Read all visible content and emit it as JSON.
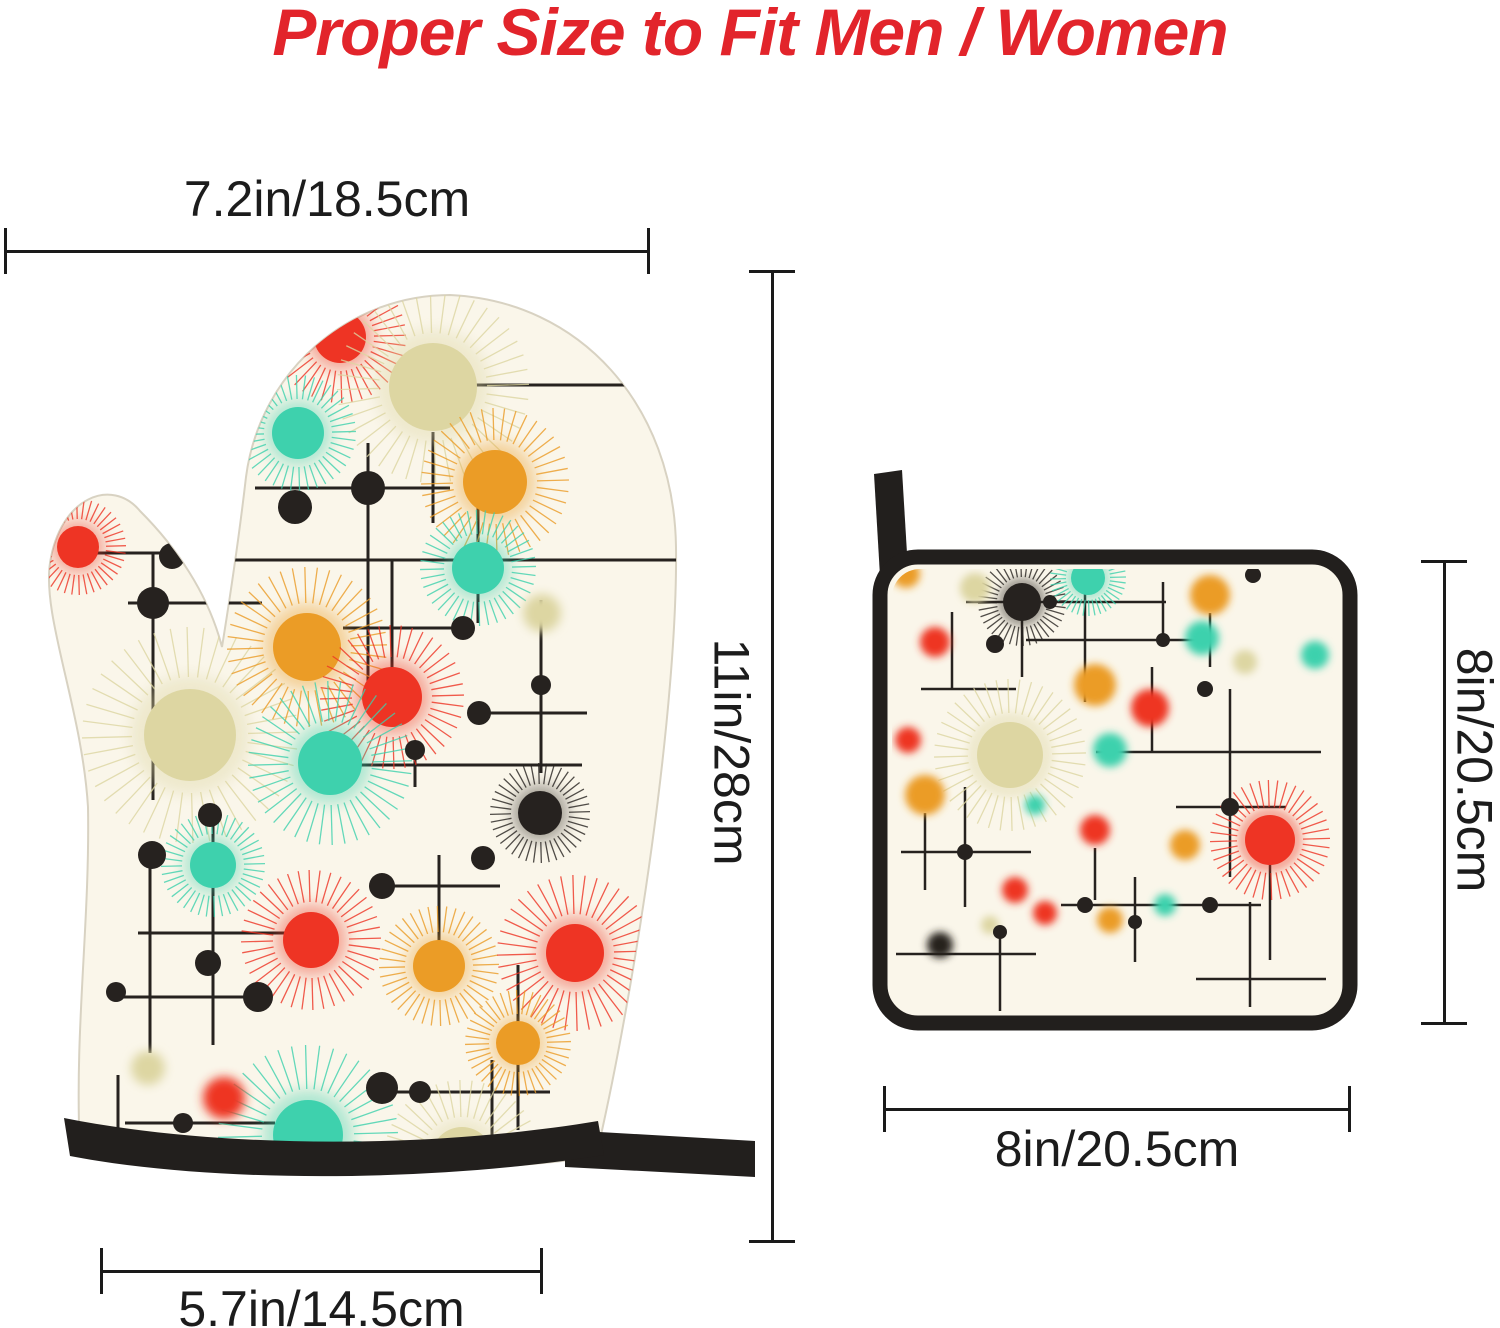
{
  "title": {
    "text": "Proper Size to Fit Men / Women",
    "color": "#e2242b"
  },
  "products": {
    "oven_mitt": {
      "width_label": "7.2in/18.5cm",
      "height_label": "11in/28cm",
      "cuff_width_label": "5.7in/14.5cm"
    },
    "pot_holder": {
      "height_label": "8in/20.5cm",
      "width_label": "8in/20.5cm"
    }
  },
  "palette": {
    "background": "#ffffff",
    "fabric": "#faf6ea",
    "fabric_edge": "#d8d2c2",
    "red": "#ee3424",
    "teal": "#3ed1ad",
    "orange": "#eb9c26",
    "olive": "#ddd6a2",
    "black": "#26221f",
    "binding_black": "#221f1d",
    "dimension_line": "#1a1a1a"
  }
}
